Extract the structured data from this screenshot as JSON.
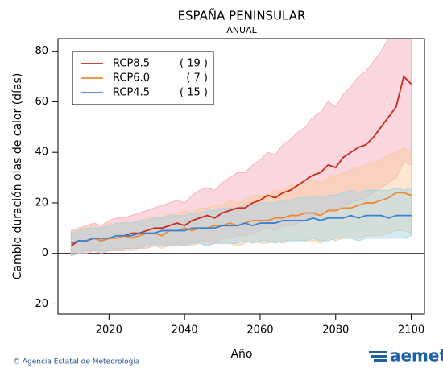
{
  "chart_data": {
    "type": "line",
    "title": "ESPAÑA PENINSULAR",
    "subtitle": "ANUAL",
    "y_label": "Cambio duración olas de calor (días)",
    "x_label": "Año",
    "credit": "© Agencia Estatal de Meteorología",
    "logo_text": "aemet",
    "x": [
      2010,
      2012,
      2014,
      2016,
      2018,
      2020,
      2022,
      2024,
      2026,
      2028,
      2030,
      2032,
      2034,
      2036,
      2038,
      2040,
      2042,
      2044,
      2046,
      2048,
      2050,
      2052,
      2054,
      2056,
      2058,
      2060,
      2062,
      2064,
      2066,
      2068,
      2070,
      2072,
      2074,
      2076,
      2078,
      2080,
      2082,
      2084,
      2086,
      2088,
      2090,
      2092,
      2094,
      2096,
      2098,
      2100
    ],
    "xlim": [
      2006.5,
      2103.5
    ],
    "xticks": [
      2020,
      2040,
      2060,
      2080,
      2100
    ],
    "ylim": [
      -24,
      85
    ],
    "yticks": [
      -20,
      0,
      20,
      40,
      60,
      80
    ],
    "legend": "upper-left",
    "series": [
      {
        "name": "RCP8.5",
        "count": "( 19 )",
        "color": "#cc2a1a",
        "band_color": "#f4a7b6",
        "values": [
          3,
          5,
          5,
          6,
          5,
          6,
          7,
          7,
          8,
          8,
          9,
          10,
          10,
          11,
          12,
          11,
          13,
          14,
          15,
          14,
          16,
          17,
          18,
          18,
          20,
          21,
          23,
          22,
          24,
          25,
          27,
          29,
          31,
          32,
          35,
          34,
          38,
          40,
          42,
          43,
          46,
          50,
          54,
          58,
          70,
          67
        ],
        "lower": [
          -1,
          0,
          0,
          1,
          0,
          1,
          1,
          1,
          2,
          2,
          2,
          3,
          3,
          3,
          4,
          3,
          4,
          5,
          5,
          4,
          6,
          6,
          7,
          7,
          8,
          9,
          10,
          9,
          11,
          11,
          12,
          13,
          15,
          15,
          17,
          16,
          19,
          20,
          21,
          22,
          24,
          26,
          28,
          30,
          36,
          35
        ],
        "upper": [
          9,
          10,
          11,
          12,
          11,
          13,
          14,
          14,
          15,
          16,
          17,
          18,
          19,
          20,
          21,
          20,
          23,
          25,
          26,
          25,
          28,
          30,
          32,
          32,
          35,
          37,
          40,
          39,
          43,
          45,
          48,
          50,
          54,
          56,
          60,
          58,
          63,
          66,
          70,
          72,
          76,
          80,
          85,
          85,
          85,
          85
        ]
      },
      {
        "name": "RCP6.0",
        "count": "( 7 )",
        "color": "#f08a32",
        "band_color": "#fbc99a",
        "values": [
          4,
          5,
          5,
          6,
          5,
          6,
          6,
          7,
          6,
          7,
          8,
          8,
          7,
          9,
          9,
          10,
          9,
          10,
          10,
          11,
          11,
          12,
          11,
          12,
          13,
          13,
          13,
          14,
          14,
          15,
          15,
          16,
          16,
          15,
          17,
          17,
          18,
          18,
          19,
          20,
          20,
          21,
          22,
          24,
          24,
          23
        ],
        "lower": [
          0,
          1,
          1,
          2,
          1,
          2,
          1,
          2,
          1,
          2,
          3,
          3,
          2,
          3,
          3,
          4,
          3,
          4,
          3,
          4,
          4,
          4,
          3,
          4,
          5,
          4,
          4,
          5,
          4,
          5,
          5,
          5,
          5,
          4,
          6,
          5,
          6,
          6,
          6,
          7,
          7,
          7,
          8,
          9,
          9,
          8
        ],
        "upper": [
          9,
          10,
          10,
          11,
          10,
          12,
          11,
          13,
          12,
          13,
          14,
          14,
          14,
          16,
          16,
          17,
          16,
          18,
          18,
          19,
          19,
          21,
          20,
          21,
          23,
          23,
          23,
          25,
          25,
          27,
          27,
          28,
          29,
          28,
          30,
          31,
          32,
          33,
          34,
          35,
          36,
          37,
          39,
          40,
          42,
          40
        ]
      },
      {
        "name": "RCP4.5",
        "count": "( 15 )",
        "color": "#3a82d6",
        "band_color": "#9fd2e6",
        "values": [
          4,
          5,
          5,
          6,
          6,
          6,
          7,
          7,
          7,
          8,
          8,
          8,
          9,
          9,
          9,
          9,
          10,
          10,
          10,
          10,
          11,
          11,
          11,
          12,
          11,
          12,
          12,
          12,
          13,
          13,
          13,
          13,
          14,
          13,
          14,
          14,
          14,
          15,
          14,
          15,
          15,
          15,
          14,
          15,
          15,
          15
        ],
        "lower": [
          -1,
          0,
          1,
          1,
          1,
          1,
          2,
          2,
          2,
          2,
          3,
          3,
          3,
          3,
          3,
          3,
          4,
          4,
          3,
          4,
          4,
          4,
          4,
          5,
          4,
          5,
          5,
          4,
          5,
          5,
          5,
          5,
          6,
          5,
          5,
          6,
          6,
          6,
          5,
          6,
          6,
          6,
          6,
          6,
          6,
          7
        ],
        "upper": [
          8,
          9,
          10,
          10,
          10,
          11,
          12,
          12,
          12,
          13,
          13,
          14,
          14,
          15,
          15,
          15,
          16,
          16,
          17,
          17,
          18,
          18,
          18,
          19,
          19,
          20,
          20,
          20,
          21,
          21,
          22,
          22,
          23,
          22,
          23,
          23,
          24,
          25,
          24,
          25,
          25,
          25,
          25,
          26,
          25,
          26
        ]
      }
    ]
  }
}
